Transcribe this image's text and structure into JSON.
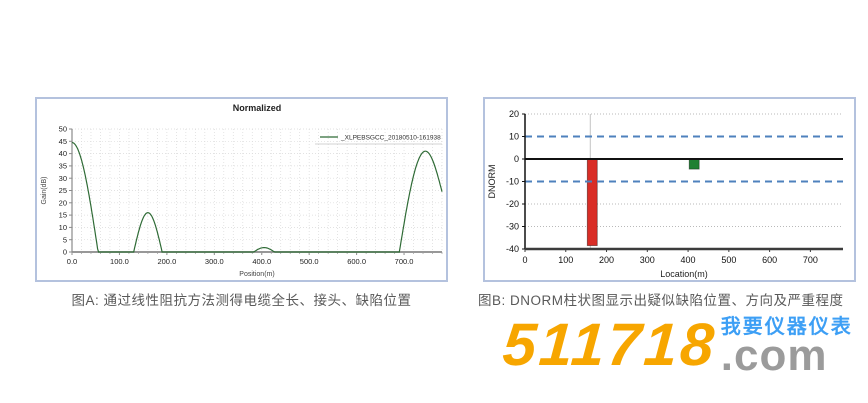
{
  "figure": {
    "caption_a": "图A: 通过线性阻抗方法测得电缆全长、接头、缺陷位置",
    "caption_b": "图B: DNORM柱状图显示出疑似缺陷位置、方向及严重程度"
  },
  "logo": {
    "number": "511718",
    "suffix": ".com",
    "tagline": "我要仪器仪表",
    "number_color": "#F7A600",
    "suffix_color": "#9B9B9B",
    "tagline_color": "#3D9FF5"
  },
  "chart_data": [
    {
      "type": "line",
      "title": "Normalized",
      "xlabel": "Position(m)",
      "ylabel": "Gain(dB)",
      "xlim": [
        0,
        780
      ],
      "ylim": [
        0,
        50
      ],
      "xtick_values": [
        0,
        100,
        200,
        300,
        400,
        500,
        600,
        700
      ],
      "xtick_labels": [
        "0.0",
        "100.0",
        "200.0",
        "300.0",
        "400.0",
        "500.0",
        "600.0",
        "700.0"
      ],
      "ytick_step": 5,
      "minor_x_step": 20,
      "grid": "dotted",
      "legend": "_XLPEBSGCC_20180510-161938",
      "line_color": "#2f6b36",
      "series_features": [
        {
          "kind": "falling_edge",
          "x_start": 0,
          "y_start": 44.5,
          "x_end": 55
        },
        {
          "kind": "peak",
          "x_start": 130,
          "x_peak": 160,
          "x_end": 190,
          "height": 16
        },
        {
          "kind": "peak",
          "x_start": 383,
          "x_peak": 405,
          "x_end": 427,
          "height": 1.8
        },
        {
          "kind": "peak",
          "x_start": 690,
          "x_peak": 745,
          "x_end": 780,
          "height": 41,
          "y_end": 24.5
        }
      ]
    },
    {
      "type": "bar",
      "xlabel": "Location(m)",
      "ylabel": "DNORM",
      "xlim": [
        0,
        780
      ],
      "ylim": [
        -40,
        20
      ],
      "xtick_values": [
        0,
        100,
        200,
        300,
        400,
        500,
        600,
        700
      ],
      "ytick_values": [
        20,
        10,
        0,
        -10,
        -20,
        -30,
        -40
      ],
      "dotted_gridlines": [
        20,
        -20,
        -30
      ],
      "threshold_lines": [
        10,
        -10
      ],
      "threshold_color": "#4e81bd",
      "marker_x": 160,
      "bars": [
        {
          "x": 165,
          "value": -38.5,
          "color": "#d92d26"
        },
        {
          "x": 415,
          "value": -4.5,
          "color": "#1f8032"
        }
      ]
    }
  ]
}
